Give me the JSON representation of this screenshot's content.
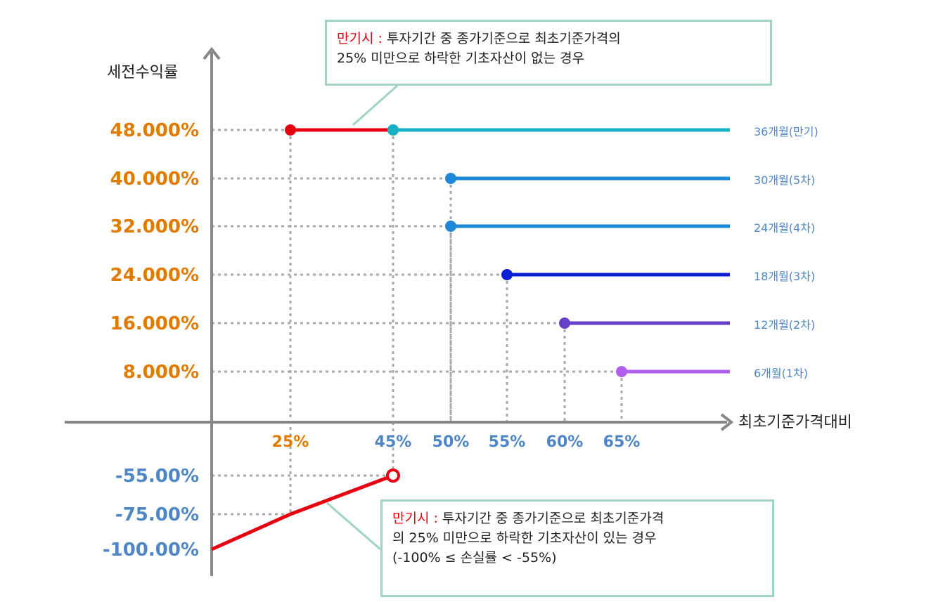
{
  "chart_data": {
    "type": "line",
    "ylabel": "세전수익률",
    "xlabel": "최초기준가격대비",
    "y_ticks": [
      {
        "label": "48.000%",
        "value": 48,
        "color": "#e07b00"
      },
      {
        "label": "40.000%",
        "value": 40,
        "color": "#e07b00"
      },
      {
        "label": "32.000%",
        "value": 32,
        "color": "#e07b00"
      },
      {
        "label": "24.000%",
        "value": 24,
        "color": "#e07b00"
      },
      {
        "label": "16.000%",
        "value": 16,
        "color": "#e07b00"
      },
      {
        "label": "8.000%",
        "value": 8,
        "color": "#e07b00"
      },
      {
        "label": "-55.00%",
        "value": -55,
        "color": "#4f86c6"
      },
      {
        "label": "-75.00%",
        "value": -75,
        "color": "#4f86c6"
      },
      {
        "label": "-100.00%",
        "value": -100,
        "color": "#4f86c6"
      }
    ],
    "x_ticks": [
      {
        "label": "25%",
        "value": 25,
        "color": "#e07b00"
      },
      {
        "label": "45%",
        "value": 45,
        "color": "#4f86c6"
      },
      {
        "label": "50%",
        "value": 50,
        "color": "#4f86c6"
      },
      {
        "label": "55%",
        "value": 55,
        "color": "#4f86c6"
      },
      {
        "label": "60%",
        "value": 60,
        "color": "#4f86c6"
      },
      {
        "label": "65%",
        "value": 65,
        "color": "#4f86c6"
      }
    ],
    "series": [
      {
        "name": "36개월(만기)",
        "start_x": 45,
        "y": 48,
        "color": "#17b0c4"
      },
      {
        "name": "30개월(5차)",
        "start_x": 50,
        "y": 40,
        "color": "#1e88d6"
      },
      {
        "name": "24개월(4차)",
        "start_x": 50,
        "y": 32,
        "color": "#1e88d6"
      },
      {
        "name": "18개월(3차)",
        "start_x": 55,
        "y": 24,
        "color": "#0a1fd6"
      },
      {
        "name": "12개월(2차)",
        "start_x": 60,
        "y": 16,
        "color": "#6640c8"
      },
      {
        "name": "6개월(1차)",
        "start_x": 65,
        "y": 8,
        "color": "#b05ef0"
      }
    ],
    "maturity_gain": {
      "x_from": 25,
      "x_to": 45,
      "y": 48,
      "color": "#e60012"
    },
    "maturity_loss": {
      "points": [
        [
          0,
          -100
        ],
        [
          25,
          -75
        ],
        [
          45,
          -55
        ]
      ],
      "open_end": true,
      "color": "#e60012"
    }
  },
  "notes": {
    "top": {
      "prefix": "만기시 :",
      "text": " 투자기간 중 종가기준으로 최초기준가격의",
      "line2": "25% 미만으로 하락한 기초자산이 없는 경우"
    },
    "bottom": {
      "prefix": "만기시 :",
      "text": " 투자기간 중 종가기준으로 최초기준가격",
      "line2": "의 25% 미만으로 하락한 기초자산이 있는 경우",
      "line3": "(-100% ≤ 손실률 < -55%)"
    }
  }
}
